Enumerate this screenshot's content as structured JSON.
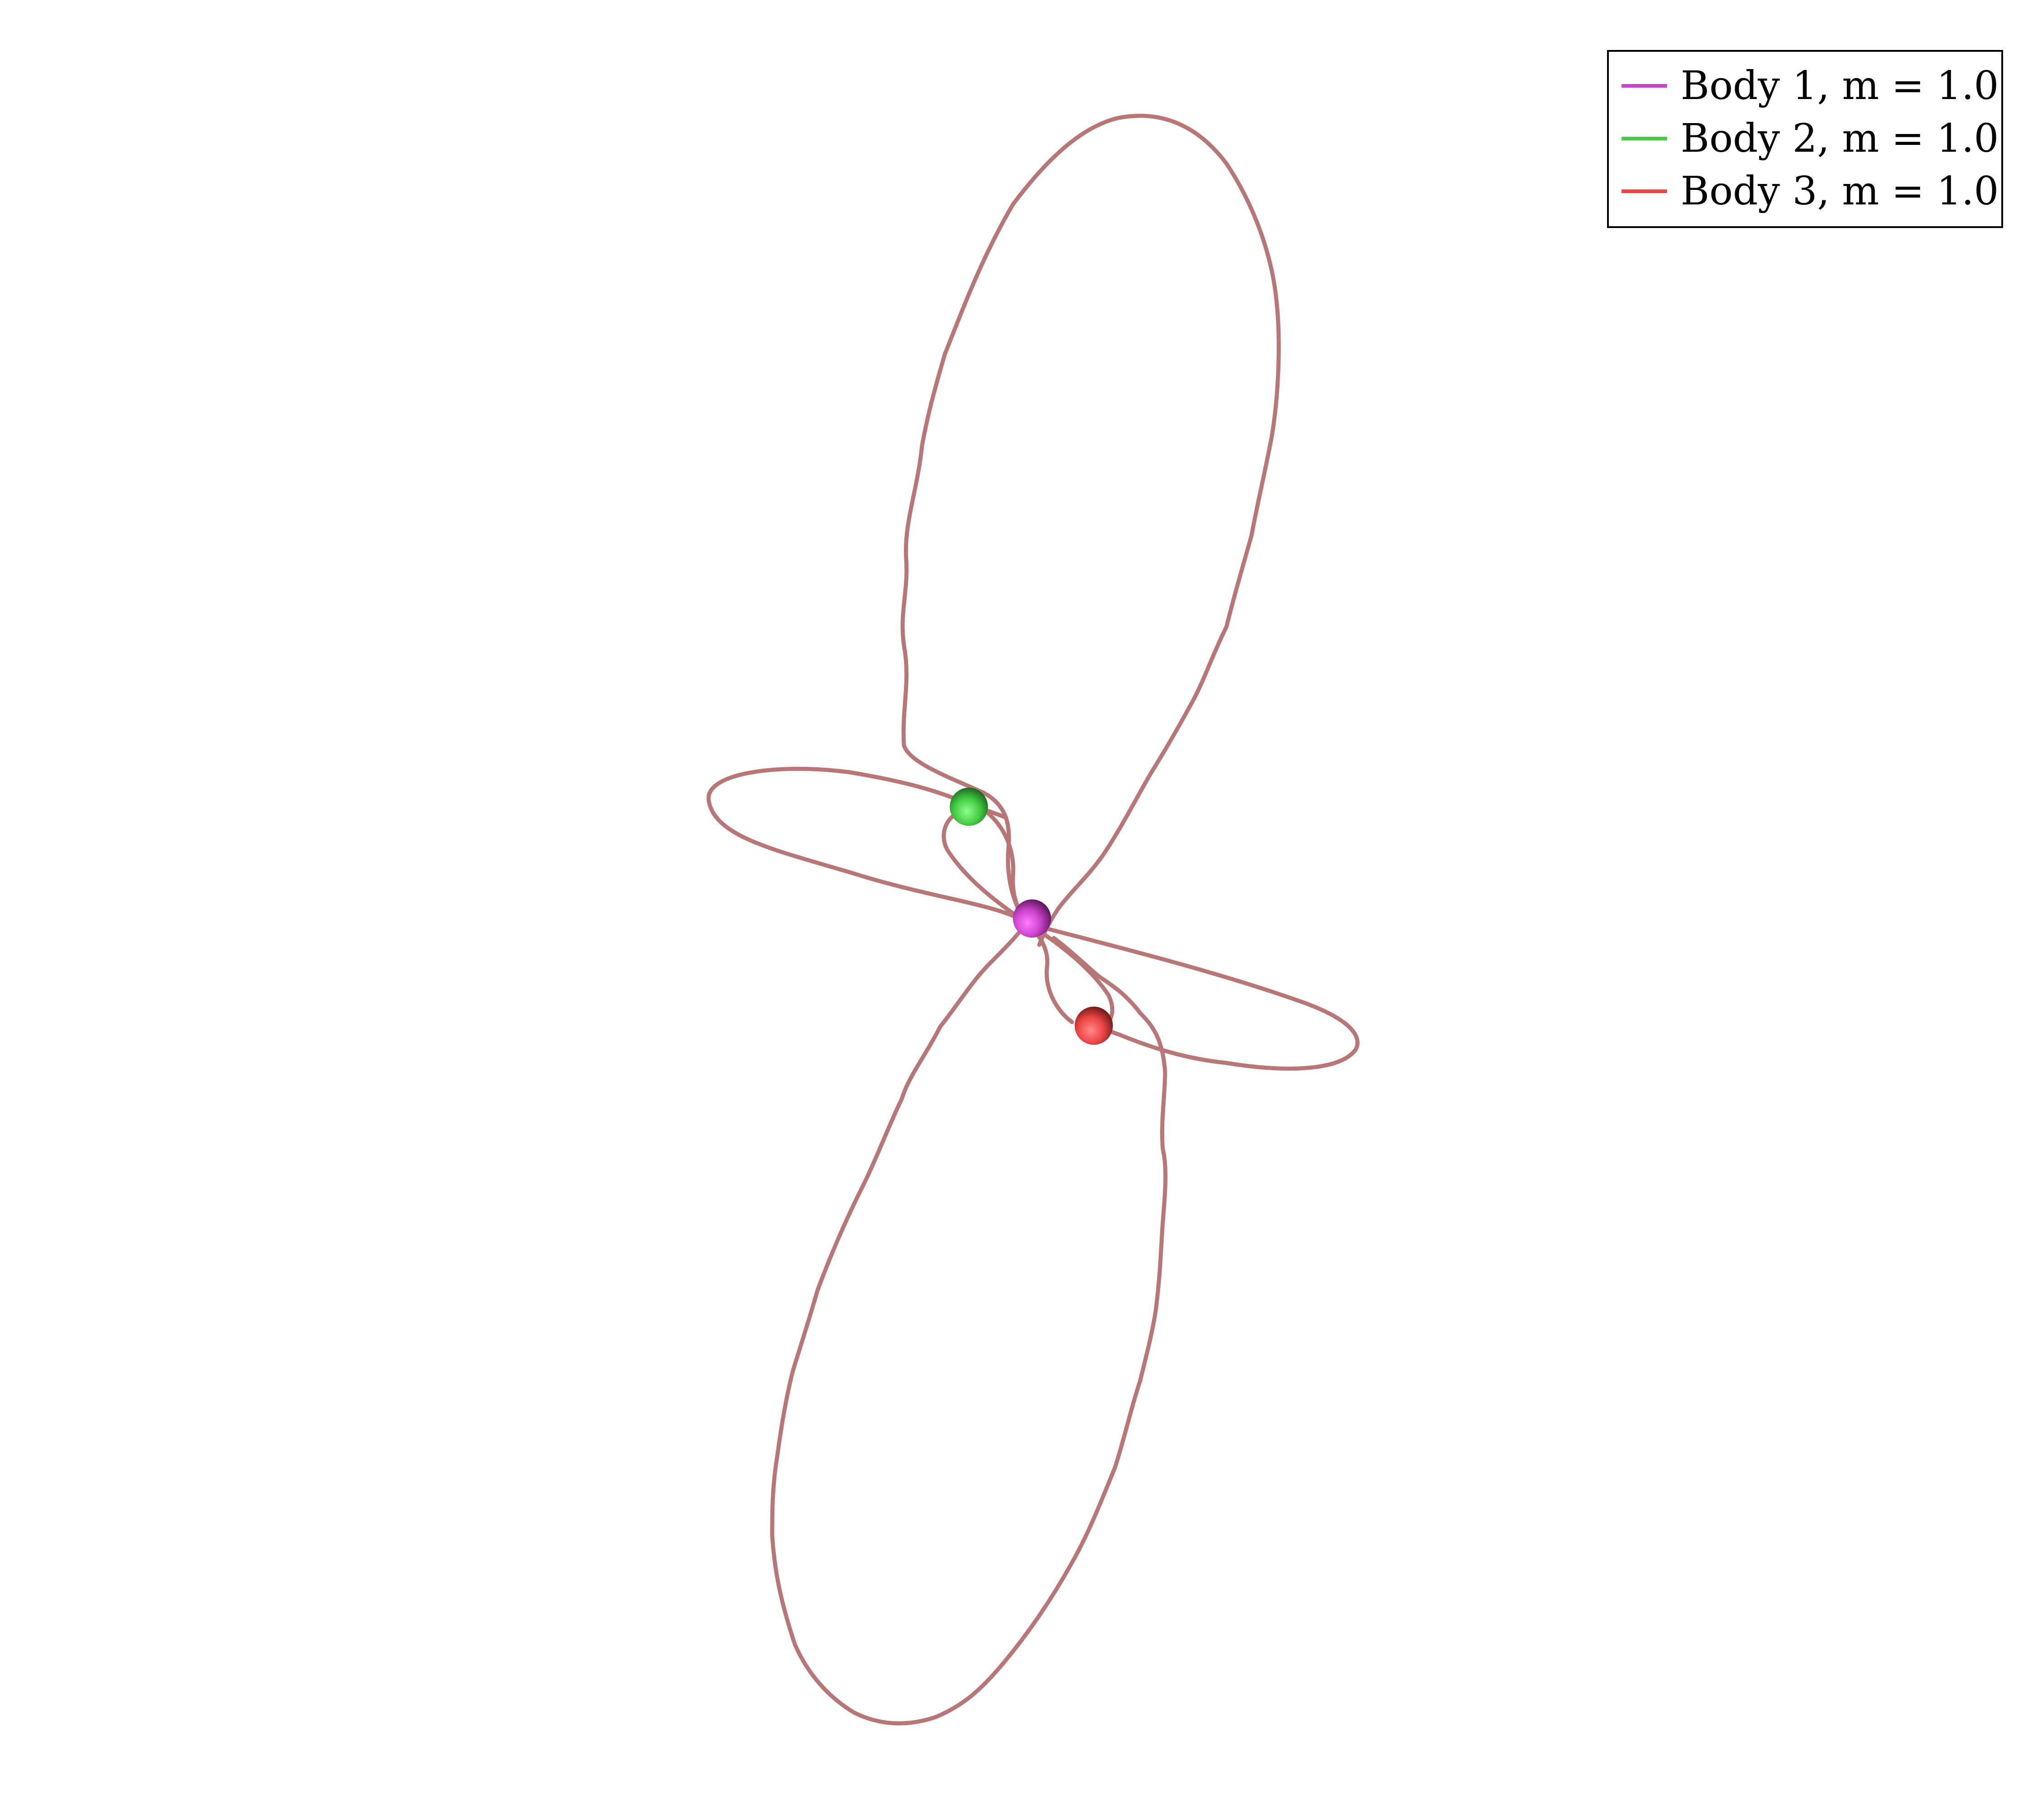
{
  "trail_color": "#b97677",
  "legend": {
    "items": [
      {
        "label": "Body 1, m = 1.0",
        "color": "#cc44cc"
      },
      {
        "label": "Body 2, m = 1.0",
        "color": "#44cc44"
      },
      {
        "label": "Body 3, m = 1.0",
        "color": "#ee4444"
      }
    ]
  },
  "bodies": [
    {
      "name": "Body 1",
      "mass": 1.0,
      "color": "#cc44cc",
      "icon": "purple-sphere"
    },
    {
      "name": "Body 2",
      "mass": 1.0,
      "color": "#44cc44",
      "icon": "green-sphere"
    },
    {
      "name": "Body 3",
      "mass": 1.0,
      "color": "#ee4444",
      "icon": "red-sphere"
    }
  ]
}
